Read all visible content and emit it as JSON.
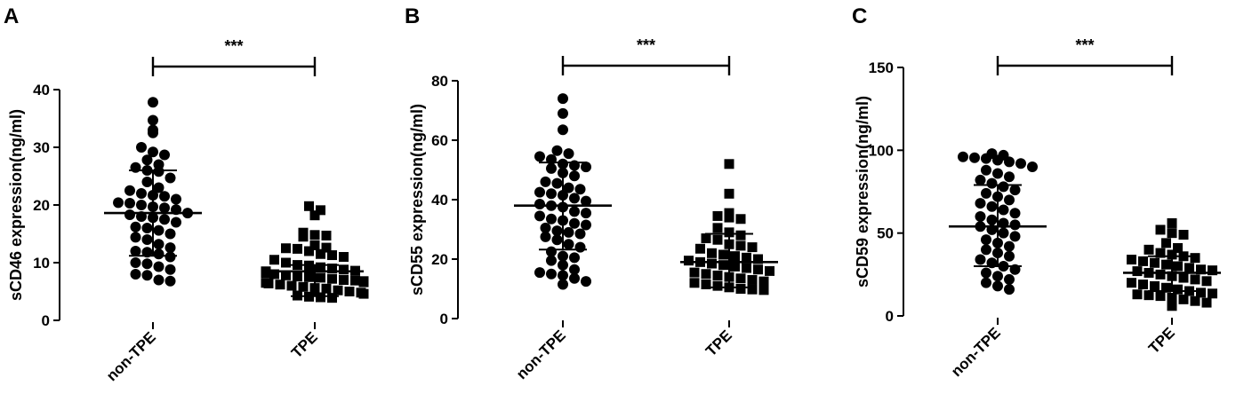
{
  "chart_data": [
    {
      "type": "scatter",
      "panel": "A",
      "ylabel": "sCD46 expression(ng/ml)",
      "ylim": [
        0,
        40
      ],
      "yticks": [
        0,
        10,
        20,
        30,
        40
      ],
      "categories": [
        "non-TPE",
        "TPE"
      ],
      "significance": "***",
      "groups": [
        {
          "category": "non-TPE",
          "marker": "circle",
          "mean": 18.6,
          "sd_low": 11.2,
          "sd_high": 26.0,
          "values": [
            37.8,
            34.7,
            33.0,
            32.5,
            30.0,
            29.2,
            28.7,
            27.8,
            27.0,
            26.5,
            26.0,
            25.8,
            24.7,
            24.0,
            23.0,
            22.5,
            22.0,
            21.7,
            21.5,
            21.0,
            20.4,
            20.3,
            20.0,
            19.7,
            19.5,
            19.2,
            18.6,
            18.3,
            18.0,
            17.8,
            17.5,
            17.0,
            16.2,
            16.0,
            15.6,
            15.0,
            14.4,
            14.0,
            13.2,
            12.6,
            12.0,
            11.8,
            11.5,
            11.0,
            10.0,
            9.8,
            9.3,
            8.8,
            8.0,
            7.8,
            7.0,
            6.8
          ]
        },
        {
          "category": "TPE",
          "marker": "square",
          "mean": 8.5,
          "sd_low": 4.2,
          "sd_high": 9.6,
          "values": [
            19.8,
            19.1,
            18.2,
            15.2,
            14.8,
            14.7,
            14.5,
            13.0,
            12.6,
            12.5,
            12.4,
            12.0,
            11.5,
            11.3,
            11.0,
            10.5,
            10.0,
            9.6,
            9.5,
            9.2,
            9.0,
            8.8,
            8.6,
            8.5,
            8.2,
            8.0,
            7.8,
            7.6,
            7.5,
            7.4,
            7.2,
            7.0,
            6.9,
            6.8,
            6.6,
            6.5,
            6.4,
            6.2,
            6.0,
            5.8,
            5.6,
            5.5,
            5.2,
            5.0,
            4.8,
            4.6,
            4.3,
            4.1,
            4.0,
            3.9
          ]
        }
      ]
    },
    {
      "type": "scatter",
      "panel": "B",
      "ylabel": "sCD55 expression(ng/ml)",
      "ylim": [
        0,
        80
      ],
      "yticks": [
        0,
        20,
        40,
        60,
        80
      ],
      "categories": [
        "non-TPE",
        "TPE"
      ],
      "significance": "***",
      "groups": [
        {
          "category": "non-TPE",
          "marker": "circle",
          "mean": 38.0,
          "sd_low": 23.2,
          "sd_high": 52.5,
          "values": [
            74.0,
            69.0,
            63.5,
            56.5,
            55.5,
            54.5,
            53.5,
            52.0,
            51.5,
            51.0,
            50.5,
            49.0,
            48.0,
            46.0,
            45.5,
            44.0,
            43.5,
            42.5,
            42.0,
            41.5,
            40.5,
            39.5,
            38.5,
            38.0,
            37.5,
            36.0,
            35.5,
            34.5,
            33.5,
            33.0,
            32.0,
            31.5,
            30.5,
            29.5,
            29.0,
            28.5,
            27.5,
            26.5,
            25.0,
            24.0,
            22.5,
            21.0,
            20.5,
            19.5,
            18.0,
            16.5,
            15.5,
            15.0,
            14.5,
            13.5,
            12.5,
            11.5
          ]
        },
        {
          "category": "TPE",
          "marker": "square",
          "mean": 19.0,
          "sd_low": 10.5,
          "sd_high": 28.5,
          "values": [
            52.0,
            42.0,
            35.5,
            34.5,
            34.0,
            33.5,
            30.5,
            29.0,
            28.0,
            27.0,
            26.5,
            25.0,
            24.5,
            24.0,
            23.5,
            22.0,
            21.5,
            21.0,
            20.5,
            20.0,
            19.5,
            19.0,
            18.5,
            18.0,
            17.5,
            17.0,
            16.5,
            16.0,
            15.5,
            15.0,
            14.5,
            14.0,
            13.5,
            13.0,
            12.5,
            12.0,
            11.5,
            11.0,
            10.5,
            10.0,
            9.8,
            9.6
          ]
        }
      ]
    },
    {
      "type": "scatter",
      "panel": "C",
      "ylabel": "sCD59 expression(ng/ml)",
      "ylim": [
        0,
        150
      ],
      "yticks": [
        0,
        50,
        100,
        150
      ],
      "categories": [
        "non-TPE",
        "TPE"
      ],
      "significance": "***",
      "groups": [
        {
          "category": "non-TPE",
          "marker": "circle",
          "mean": 54.0,
          "sd_low": 30.0,
          "sd_high": 79.0,
          "values": [
            98.0,
            97.0,
            96.0,
            95.5,
            95.0,
            94.0,
            93.0,
            92.0,
            90.0,
            88.0,
            86.0,
            84.0,
            82.0,
            80.0,
            78.0,
            76.0,
            74.0,
            72.0,
            70.0,
            68.0,
            66.0,
            64.0,
            62.0,
            60.0,
            58.0,
            56.0,
            55.0,
            54.0,
            52.0,
            50.0,
            48.0,
            46.0,
            44.0,
            42.0,
            40.0,
            38.0,
            36.0,
            34.0,
            32.0,
            30.0,
            28.0,
            26.0,
            24.0,
            22.0,
            20.0,
            18.0,
            16.0
          ]
        },
        {
          "category": "TPE",
          "marker": "square",
          "mean": 26.0,
          "sd_low": 15.0,
          "sd_high": 36.0,
          "values": [
            56.0,
            52.0,
            50.0,
            49.0,
            44.0,
            41.0,
            40.0,
            38.0,
            37.0,
            36.0,
            35.0,
            34.0,
            33.0,
            32.0,
            31.0,
            30.0,
            29.0,
            28.0,
            27.5,
            27.0,
            26.0,
            25.0,
            24.0,
            23.0,
            22.0,
            21.0,
            20.0,
            19.0,
            18.0,
            17.0,
            16.0,
            15.0,
            14.0,
            13.5,
            13.0,
            12.5,
            12.0,
            11.0,
            10.0,
            9.0,
            8.0,
            6.0
          ]
        }
      ]
    }
  ]
}
